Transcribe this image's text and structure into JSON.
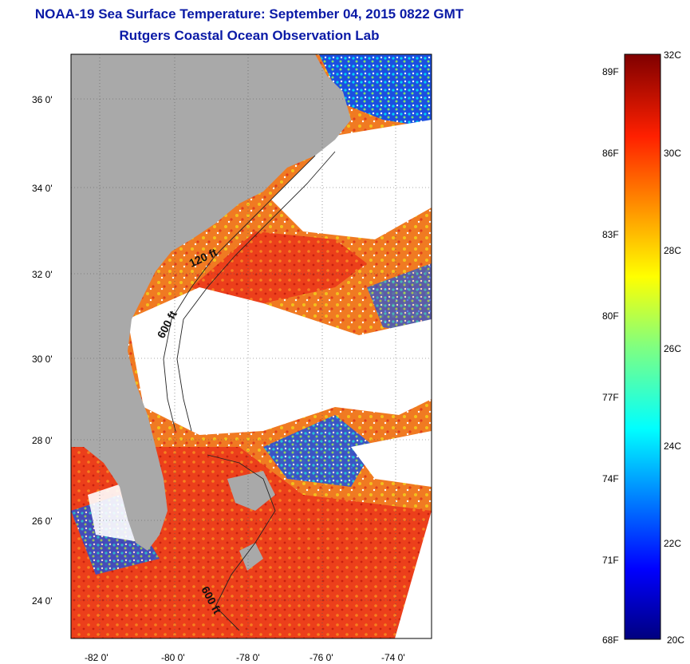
{
  "header": {
    "title": "NOAA-19 Sea Surface Temperature:  September 04, 2015 0822 GMT",
    "subtitle": "Rutgers Coastal Ocean Observation Lab"
  },
  "map": {
    "lat_labels": [
      "36 0'",
      "34 0'",
      "32 0'",
      "30 0'",
      "28 0'",
      "26 0'",
      "24 0'"
    ],
    "lon_labels": [
      "-82 0'",
      "-80 0'",
      "-78 0'",
      "-76 0'",
      "-74 0'"
    ],
    "contour_labels": [
      "120 ft",
      "600 ft",
      "600 ft"
    ]
  },
  "colorbar": {
    "celsius": [
      "32C",
      "30C",
      "28C",
      "26C",
      "24C",
      "22C",
      "20C"
    ],
    "fahrenheit": [
      "89F",
      "86F",
      "83F",
      "80F",
      "77F",
      "74F",
      "71F",
      "68F"
    ],
    "colors": {
      "land": "#a9a9a9",
      "cloud": "#ffffff",
      "warm": "#e83a1a",
      "orange": "#f48a22",
      "cool": "#1640d0"
    }
  }
}
